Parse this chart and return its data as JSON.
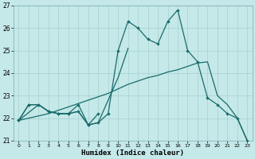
{
  "xlabel": "Humidex (Indice chaleur)",
  "xlim": [
    -0.5,
    23.5
  ],
  "ylim": [
    21,
    27
  ],
  "yticks": [
    21,
    22,
    23,
    24,
    25,
    26,
    27
  ],
  "xticks": [
    0,
    1,
    2,
    3,
    4,
    5,
    6,
    7,
    8,
    9,
    10,
    11,
    12,
    13,
    14,
    15,
    16,
    17,
    18,
    19,
    20,
    21,
    22,
    23
  ],
  "bg_color": "#c5e8e8",
  "grid_color": "#a8d0d0",
  "line_color": "#1a6b6b",
  "jagged_x": [
    0,
    1,
    2,
    3,
    4,
    5,
    6,
    7,
    8,
    9,
    10,
    11,
    12,
    13,
    14,
    15,
    16,
    17,
    18,
    19,
    20,
    21,
    22,
    23
  ],
  "jagged_y": [
    21.9,
    22.6,
    22.6,
    22.3,
    22.2,
    22.2,
    22.6,
    21.7,
    21.8,
    22.2,
    25.0,
    26.3,
    26.0,
    25.5,
    25.3,
    26.3,
    26.8,
    25.0,
    24.5,
    22.9,
    22.6,
    22.2,
    22.0,
    21.0
  ],
  "smooth_x": [
    0,
    1,
    2,
    3,
    4,
    5,
    6,
    7,
    8,
    9,
    10,
    11,
    12,
    13,
    14,
    15,
    16,
    17,
    18,
    19,
    20,
    21,
    22,
    23
  ],
  "smooth_y": [
    21.9,
    22.0,
    22.1,
    22.2,
    22.35,
    22.5,
    22.65,
    22.8,
    22.95,
    23.1,
    23.3,
    23.5,
    23.65,
    23.8,
    23.9,
    24.05,
    24.15,
    24.3,
    24.45,
    24.5,
    23.0,
    22.6,
    22.0,
    21.0
  ],
  "med_x": [
    0,
    2,
    3,
    4,
    5,
    6,
    7,
    8,
    9,
    10,
    11
  ],
  "med_y": [
    21.9,
    22.6,
    22.3,
    22.2,
    22.2,
    22.3,
    21.7,
    21.8,
    22.8,
    23.8,
    25.1
  ],
  "short_x": [
    0,
    1,
    2,
    3,
    4,
    5,
    6,
    7,
    8
  ],
  "short_y": [
    21.9,
    22.6,
    22.6,
    22.3,
    22.2,
    22.2,
    22.3,
    21.7,
    22.2
  ]
}
